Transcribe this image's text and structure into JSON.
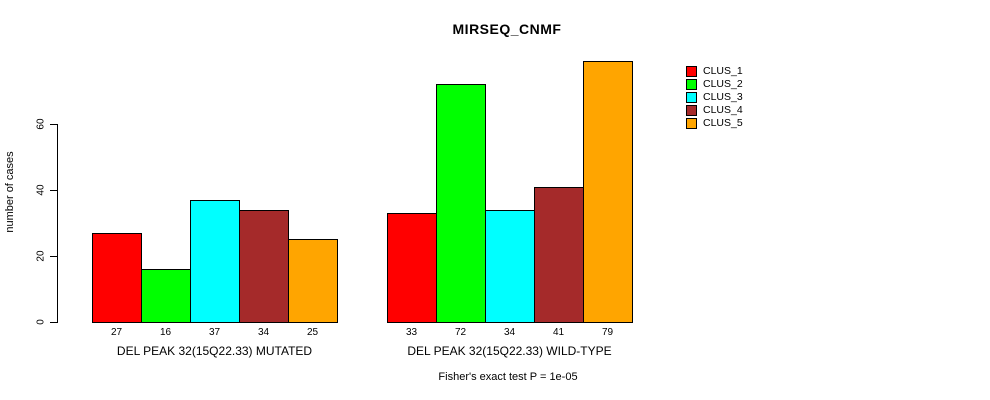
{
  "chart_data": {
    "type": "bar",
    "title": "MIRSEQ_CNMF",
    "ylabel": "number of cases",
    "xlabel": "",
    "ylim": [
      0,
      80
    ],
    "yticks": [
      0,
      20,
      40,
      60
    ],
    "grid": false,
    "legend_position": "right-inside",
    "categories": [
      "DEL PEAK 32(15Q22.33) MUTATED",
      "DEL PEAK 32(15Q22.33) WILD-TYPE"
    ],
    "series": [
      {
        "name": "CLUS_1",
        "color": "#FF0000",
        "values": [
          27,
          33
        ]
      },
      {
        "name": "CLUS_2",
        "color": "#00FF00",
        "values": [
          16,
          72
        ]
      },
      {
        "name": "CLUS_3",
        "color": "#00FFFF",
        "values": [
          37,
          34
        ]
      },
      {
        "name": "CLUS_4",
        "color": "#A52A2A",
        "values": [
          34,
          41
        ]
      },
      {
        "name": "CLUS_5",
        "color": "#FFA500",
        "values": [
          25,
          79
        ]
      }
    ],
    "bar_value_labels_shown": true,
    "annotation": "Fisher's exact test P = 1e-05",
    "colors": {
      "axis": "#000000",
      "text": "#000000",
      "background": "#FFFFFF",
      "bar_border": "#000000"
    }
  }
}
